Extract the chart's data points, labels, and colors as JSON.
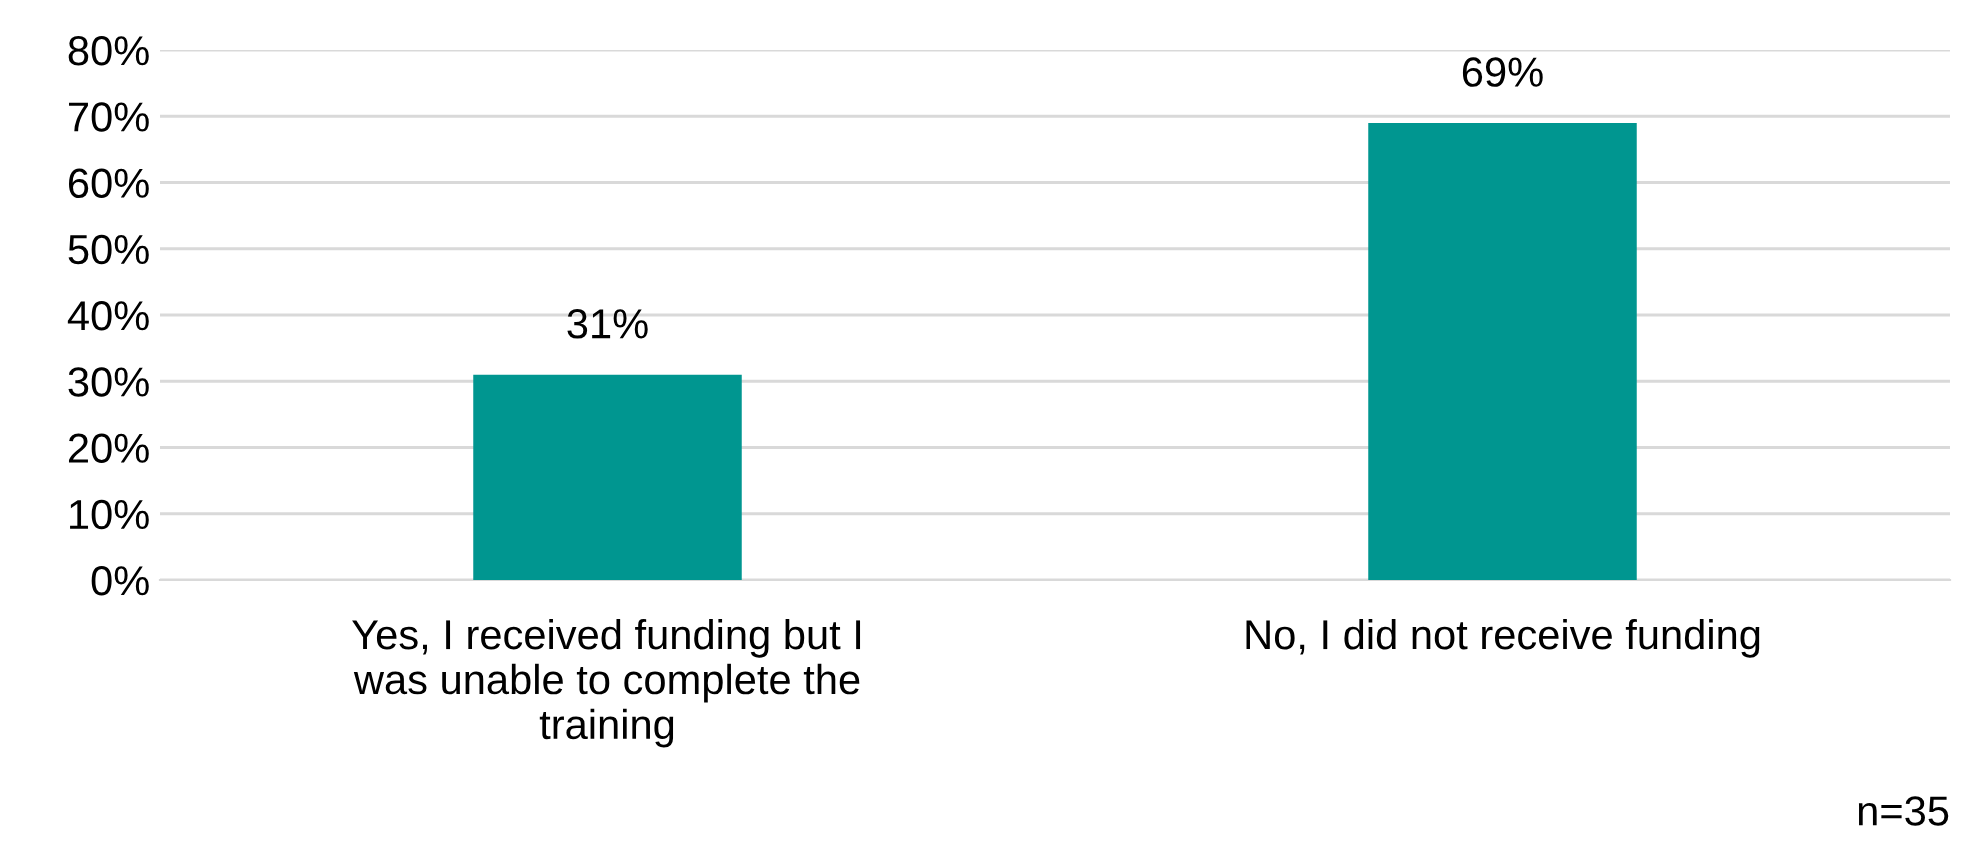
{
  "chart_data": {
    "type": "bar",
    "categories": [
      "Yes, I received funding but I\nwas unable to complete the\ntraining",
      "No, I did not receive funding"
    ],
    "values": [
      31,
      69
    ],
    "value_labels": [
      "31%",
      "69%"
    ],
    "color": "#009690",
    "ylim": [
      0,
      80
    ],
    "yticks": [
      {
        "value": 0,
        "label": "0%"
      },
      {
        "value": 10,
        "label": "10%"
      },
      {
        "value": 20,
        "label": "20%"
      },
      {
        "value": 30,
        "label": "30%"
      },
      {
        "value": 40,
        "label": "40%"
      },
      {
        "value": 50,
        "label": "50%"
      },
      {
        "value": 60,
        "label": "60%"
      },
      {
        "value": 70,
        "label": "70%"
      },
      {
        "value": 80,
        "label": "80%"
      }
    ],
    "grid": "y",
    "annotations": [
      "n=35"
    ]
  }
}
